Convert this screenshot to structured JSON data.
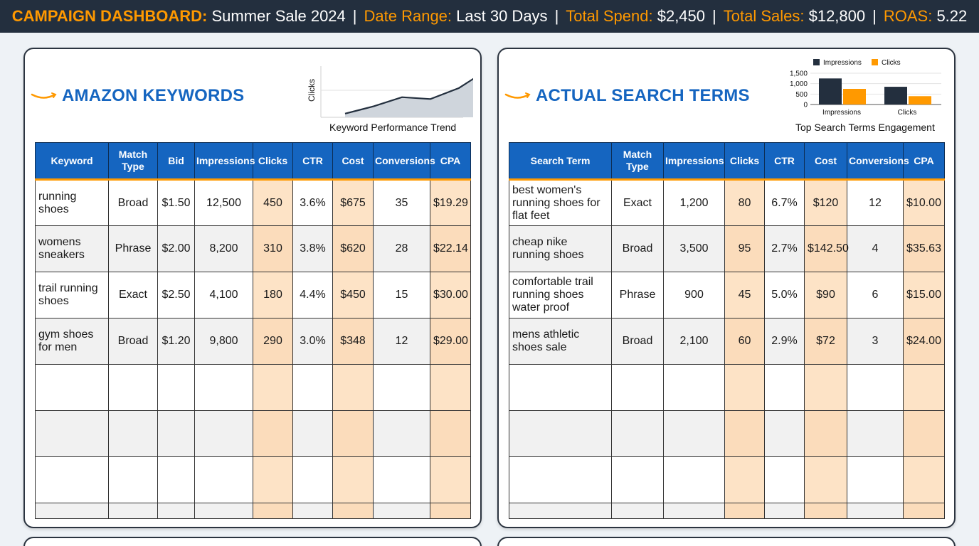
{
  "header": {
    "campaign_label": "CAMPAIGN DASHBOARD:",
    "campaign_value": "Summer Sale 2024",
    "date_label": "Date Range:",
    "date_value": "Last 30 Days",
    "spend_label": "Total Spend:",
    "spend_value": "$2,450",
    "sales_label": "Total Sales:",
    "sales_value": "$12,800",
    "roas_label": "ROAS:",
    "roas_value": "5.22",
    "separator": "|"
  },
  "colors": {
    "accent": "#ff9900",
    "brand_blue": "#1565c0",
    "navy": "#232f3e",
    "highlight": "#fde3c6"
  },
  "keywords_panel": {
    "title": "AMAZON KEYWORDS",
    "icon": "amazon-smile-icon",
    "chart_caption": "Keyword Performance Trend",
    "chart_ylabel": "Clicks",
    "columns": [
      "Keyword",
      "Match Type",
      "Bid",
      "Impressions",
      "Clicks",
      "CTR",
      "Cost",
      "Conversions",
      "CPA"
    ],
    "rows": [
      [
        "running shoes",
        "Broad",
        "$1.50",
        "12,500",
        "450",
        "3.6%",
        "$675",
        "35",
        "$19.29"
      ],
      [
        "womens sneakers",
        "Phrase",
        "$2.00",
        "8,200",
        "310",
        "3.8%",
        "$620",
        "28",
        "$22.14"
      ],
      [
        "trail running shoes",
        "Exact",
        "$2.50",
        "4,100",
        "180",
        "4.4%",
        "$450",
        "15",
        "$30.00"
      ],
      [
        "gym shoes for men",
        "Broad",
        "$1.20",
        "9,800",
        "290",
        "3.0%",
        "$348",
        "12",
        "$29.00"
      ]
    ]
  },
  "search_terms_panel": {
    "title": "ACTUAL SEARCH TERMS",
    "icon": "amazon-smile-icon",
    "chart_caption": "Top Search Terms Engagement",
    "columns": [
      "Search Term",
      "Match Type",
      "Impressions",
      "Clicks",
      "CTR",
      "Cost",
      "Conversions",
      "CPA"
    ],
    "rows": [
      [
        "best women's running shoes for flat feet",
        "Exact",
        "1,200",
        "80",
        "6.7%",
        "$120",
        "12",
        "$10.00"
      ],
      [
        "cheap nike running shoes",
        "Broad",
        "3,500",
        "95",
        "2.7%",
        "$142.50",
        "4",
        "$35.63"
      ],
      [
        "comfortable trail running shoes water proof",
        "Phrase",
        "900",
        "45",
        "5.0%",
        "$90",
        "6",
        "$15.00"
      ],
      [
        "mens athletic shoes sale",
        "Broad",
        "2,100",
        "60",
        "2.9%",
        "$72",
        "3",
        "$24.00"
      ]
    ]
  },
  "chart_data": [
    {
      "type": "area",
      "title": "Keyword Performance Trend",
      "ylabel": "Clicks",
      "xlabel": "",
      "x": [
        1,
        2,
        3,
        4,
        5,
        6
      ],
      "values": [
        10,
        30,
        55,
        50,
        80,
        130
      ],
      "ylim": [
        0,
        140
      ],
      "grid": true
    },
    {
      "type": "bar",
      "title": "Top Search Terms Engagement",
      "categories": [
        "Impressions",
        "Clicks"
      ],
      "series": [
        {
          "name": "Impressions",
          "values": [
            1250,
            850
          ],
          "color": "#232f3e"
        },
        {
          "name": "Clicks",
          "values": [
            750,
            400
          ],
          "color": "#ff9900"
        }
      ],
      "yticks": [
        "1,500",
        "1,000",
        "500",
        "0"
      ],
      "ylim": [
        0,
        1500
      ],
      "legend": "top",
      "grid": true
    }
  ]
}
